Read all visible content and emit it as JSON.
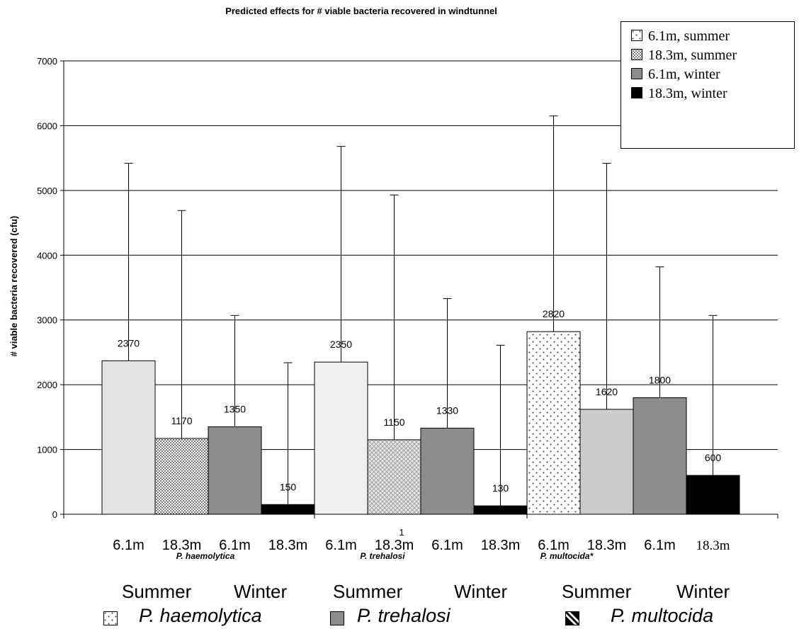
{
  "chart_data": {
    "type": "bar",
    "title": "Predicted effects for # viable bacteria recovered in windtunnel",
    "ylabel": "# viable bacteria recovered (cfu)",
    "xlabel": "",
    "ylim": [
      0,
      7000
    ],
    "yticks": [
      0,
      1000,
      2000,
      3000,
      4000,
      5000,
      6000,
      7000
    ],
    "grid": true,
    "legend_position": "top-right",
    "categories": [
      "6.1m",
      "18.3m",
      "6.1m",
      "18.3m",
      "6.1m",
      "18.3m",
      "6.1m",
      "18.3m",
      "6.1m",
      "18.3m",
      "6.1m",
      "18.3m"
    ],
    "groups": [
      "P. haemolytica",
      "P. trehalosi",
      "P. multocida*"
    ],
    "group_midlabel": "1",
    "values": [
      2370,
      1170,
      1350,
      150,
      2350,
      1150,
      1330,
      130,
      2820,
      1620,
      1800,
      600
    ],
    "data_labels": [
      "2370",
      "1170",
      "1350",
      "150",
      "2350",
      "1150",
      "1330",
      "130",
      "2820",
      "1620",
      "1800",
      "600"
    ],
    "error_upper": [
      5420,
      4690,
      3070,
      2340,
      5680,
      4930,
      3330,
      2610,
      6150,
      5420,
      3820,
      3070
    ],
    "legend": [
      {
        "label": "6.1m, summer",
        "pattern": "sparse-dots"
      },
      {
        "label": "18.3m, summer",
        "pattern": "dense-dots"
      },
      {
        "label": "6.1m, winter",
        "pattern": "gray"
      },
      {
        "label": "18.3m, winter",
        "pattern": "black"
      }
    ],
    "bar_fills": [
      "#e4e4e4",
      "dots-dense",
      "#8c8c8c",
      "#000000",
      "#f0f0f0",
      "crosshatch",
      "#8c8c8c",
      "#000000",
      "dots-sparse",
      "#cccccc",
      "#8c8c8c",
      "#000000"
    ]
  },
  "bottom_legend": {
    "seasons": [
      "Summer",
      "Winter",
      "Summer",
      "Winter",
      "Summer",
      "Winter"
    ],
    "species": [
      "P. haemolytica",
      "P. trehalosi",
      "P. multocida"
    ]
  }
}
